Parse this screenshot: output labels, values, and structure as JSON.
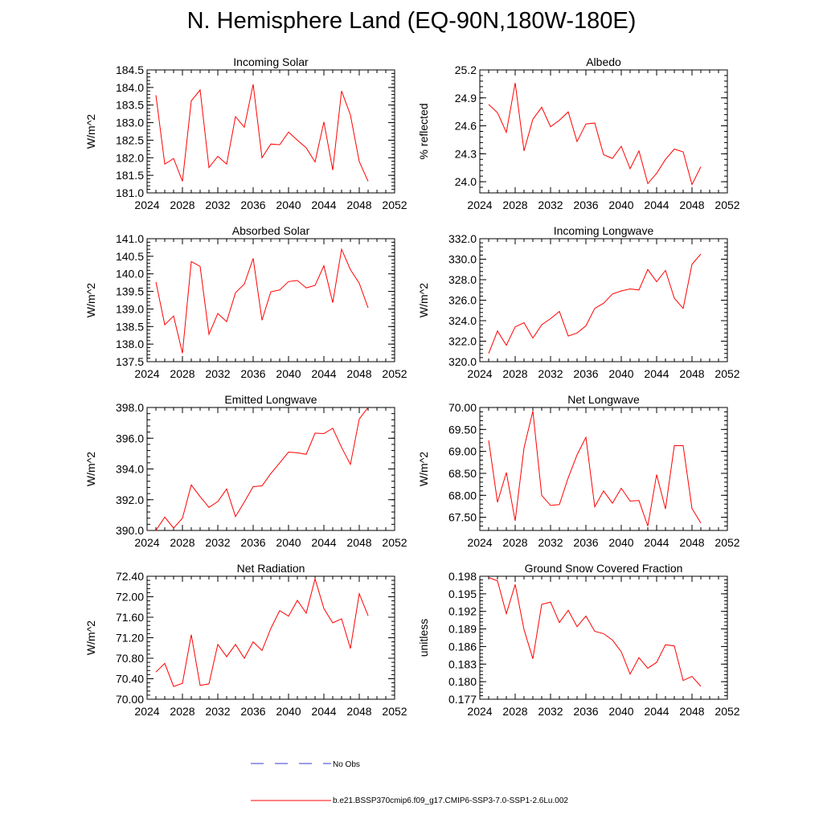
{
  "title": "N. Hemisphere Land (EQ-90N,180W-180E)",
  "legend": [
    {
      "label": "No Obs",
      "color": "#3a3ad0",
      "style": "dashed"
    },
    {
      "label": "b.e21.BSSP370cmip6.f09_g17.CMIP6-SSP3-7.0-SSP1-2.6Lu.002",
      "color": "#ff0000",
      "style": "solid"
    }
  ],
  "chart_data": [
    {
      "type": "line",
      "title": "Incoming Solar",
      "ylabel": "W/m^2",
      "xlim": [
        2024,
        2052
      ],
      "xticks": [
        "2024",
        "2028",
        "2032",
        "2036",
        "2040",
        "2044",
        "2048",
        "2052"
      ],
      "ylim": [
        181.0,
        184.5
      ],
      "yticks": [
        "181.0",
        "181.5",
        "182.0",
        "182.5",
        "183.0",
        "183.5",
        "184.0",
        "184.5"
      ],
      "series": [
        {
          "color": "#ff0000",
          "x": [
            2025,
            2026,
            2027,
            2028,
            2029,
            2030,
            2031,
            2032,
            2033,
            2034,
            2035,
            2036,
            2037,
            2038,
            2039,
            2040,
            2041,
            2042,
            2043,
            2044,
            2045,
            2046,
            2047,
            2048,
            2049
          ],
          "y": [
            183.78,
            181.82,
            181.98,
            181.33,
            183.62,
            183.93,
            181.72,
            182.04,
            181.82,
            183.17,
            182.87,
            184.09,
            182.0,
            182.39,
            182.37,
            182.73,
            182.5,
            182.28,
            181.88,
            183.02,
            181.65,
            183.9,
            183.22,
            181.89,
            181.33
          ]
        }
      ]
    },
    {
      "type": "line",
      "title": "Albedo",
      "ylabel": "% reflected",
      "xlim": [
        2024,
        2052
      ],
      "xticks": [
        "2024",
        "2028",
        "2032",
        "2036",
        "2040",
        "2044",
        "2048",
        "2052"
      ],
      "ylim": [
        23.88,
        25.2
      ],
      "yticks": [
        "24.0",
        "24.3",
        "24.6",
        "24.9",
        "25.2"
      ],
      "series": [
        {
          "color": "#ff0000",
          "x": [
            2025,
            2026,
            2027,
            2028,
            2029,
            2030,
            2031,
            2032,
            2033,
            2034,
            2035,
            2036,
            2037,
            2038,
            2039,
            2040,
            2041,
            2042,
            2043,
            2044,
            2045,
            2046,
            2047,
            2048,
            2049
          ],
          "y": [
            24.83,
            24.74,
            24.53,
            25.06,
            24.33,
            24.67,
            24.8,
            24.59,
            24.66,
            24.75,
            24.43,
            24.62,
            24.63,
            24.29,
            24.25,
            24.38,
            24.14,
            24.33,
            23.98,
            24.09,
            24.24,
            24.35,
            24.32,
            23.97,
            24.16
          ]
        }
      ]
    },
    {
      "type": "line",
      "title": "Absorbed Solar",
      "ylabel": "W/m^2",
      "xlim": [
        2024,
        2052
      ],
      "xticks": [
        "2024",
        "2028",
        "2032",
        "2036",
        "2040",
        "2044",
        "2048",
        "2052"
      ],
      "ylim": [
        137.5,
        141.0
      ],
      "yticks": [
        "137.5",
        "138.0",
        "138.5",
        "139.0",
        "139.5",
        "140.0",
        "140.5",
        "141.0"
      ],
      "series": [
        {
          "color": "#ff0000",
          "x": [
            2025,
            2026,
            2027,
            2028,
            2029,
            2030,
            2031,
            2032,
            2033,
            2034,
            2035,
            2036,
            2037,
            2038,
            2039,
            2040,
            2041,
            2042,
            2043,
            2044,
            2045,
            2046,
            2047,
            2048,
            2049
          ],
          "y": [
            139.77,
            138.55,
            138.8,
            137.74,
            140.35,
            140.21,
            138.28,
            138.87,
            138.64,
            139.46,
            139.71,
            140.44,
            138.68,
            139.49,
            139.54,
            139.78,
            139.81,
            139.6,
            139.67,
            140.23,
            139.18,
            140.7,
            140.12,
            139.73,
            139.03
          ]
        }
      ]
    },
    {
      "type": "line",
      "title": "Incoming Longwave",
      "ylabel": "W/m^2",
      "xlim": [
        2024,
        2052
      ],
      "xticks": [
        "2024",
        "2028",
        "2032",
        "2036",
        "2040",
        "2044",
        "2048",
        "2052"
      ],
      "ylim": [
        320.0,
        332.0
      ],
      "yticks": [
        "320.0",
        "322.0",
        "324.0",
        "326.0",
        "328.0",
        "330.0",
        "332.0"
      ],
      "series": [
        {
          "color": "#ff0000",
          "x": [
            2025,
            2026,
            2027,
            2028,
            2029,
            2030,
            2031,
            2032,
            2033,
            2034,
            2035,
            2036,
            2037,
            2038,
            2039,
            2040,
            2041,
            2042,
            2043,
            2044,
            2045,
            2046,
            2047,
            2048,
            2049
          ],
          "y": [
            320.8,
            323.0,
            321.6,
            323.4,
            323.8,
            322.3,
            323.6,
            324.2,
            324.9,
            322.5,
            322.8,
            323.5,
            325.2,
            325.7,
            326.6,
            326.9,
            327.1,
            327.0,
            329.0,
            327.8,
            328.9,
            326.2,
            325.2,
            329.5,
            330.5
          ]
        }
      ]
    },
    {
      "type": "line",
      "title": "Emitted Longwave",
      "ylabel": "W/m^2",
      "xlim": [
        2024,
        2052
      ],
      "xticks": [
        "2024",
        "2028",
        "2032",
        "2036",
        "2040",
        "2044",
        "2048",
        "2052"
      ],
      "ylim": [
        390.0,
        398.0
      ],
      "yticks": [
        "390.0",
        "392.0",
        "394.0",
        "396.0",
        "398.0"
      ],
      "series": [
        {
          "color": "#ff0000",
          "x": [
            2025,
            2026,
            2027,
            2028,
            2029,
            2030,
            2031,
            2032,
            2033,
            2034,
            2035,
            2036,
            2037,
            2038,
            2039,
            2040,
            2041,
            2042,
            2043,
            2044,
            2045,
            2046,
            2047,
            2048,
            2049
          ],
          "y": [
            390.0,
            390.87,
            390.15,
            390.8,
            392.96,
            392.2,
            391.5,
            391.88,
            392.7,
            390.9,
            391.85,
            392.85,
            392.9,
            393.7,
            394.4,
            395.1,
            395.05,
            394.95,
            396.33,
            396.3,
            396.65,
            395.4,
            394.3,
            397.25,
            398.0
          ]
        }
      ]
    },
    {
      "type": "line",
      "title": "Net Longwave",
      "ylabel": "W/m^2",
      "xlim": [
        2024,
        2052
      ],
      "xticks": [
        "2024",
        "2028",
        "2032",
        "2036",
        "2040",
        "2044",
        "2048",
        "2052"
      ],
      "ylim": [
        67.2,
        70.0
      ],
      "yticks": [
        "67.50",
        "68.00",
        "68.50",
        "69.00",
        "69.50",
        "70.00"
      ],
      "series": [
        {
          "color": "#ff0000",
          "x": [
            2025,
            2026,
            2027,
            2028,
            2029,
            2030,
            2031,
            2032,
            2033,
            2034,
            2035,
            2036,
            2037,
            2038,
            2039,
            2040,
            2041,
            2042,
            2043,
            2044,
            2045,
            2046,
            2047,
            2048,
            2049
          ],
          "y": [
            69.25,
            67.84,
            68.52,
            67.42,
            69.08,
            69.92,
            68.0,
            67.77,
            67.79,
            68.4,
            68.92,
            69.32,
            67.74,
            68.1,
            67.82,
            68.16,
            67.87,
            67.88,
            67.3,
            68.47,
            67.69,
            69.13,
            69.13,
            67.7,
            67.37
          ]
        }
      ]
    },
    {
      "type": "line",
      "title": "Net Radiation",
      "ylabel": "W/m^2",
      "xlim": [
        2024,
        2052
      ],
      "xticks": [
        "2024",
        "2028",
        "2032",
        "2036",
        "2040",
        "2044",
        "2048",
        "2052"
      ],
      "ylim": [
        70.0,
        72.4
      ],
      "yticks": [
        "70.00",
        "70.40",
        "70.80",
        "71.20",
        "71.60",
        "72.00",
        "72.40"
      ],
      "series": [
        {
          "color": "#ff0000",
          "x": [
            2025,
            2026,
            2027,
            2028,
            2029,
            2030,
            2031,
            2032,
            2033,
            2034,
            2035,
            2036,
            2037,
            2038,
            2039,
            2040,
            2041,
            2042,
            2043,
            2044,
            2045,
            2046,
            2047,
            2048,
            2049
          ],
          "y": [
            70.53,
            70.7,
            70.25,
            70.31,
            71.26,
            70.27,
            70.3,
            71.07,
            70.83,
            71.07,
            70.8,
            71.12,
            70.95,
            71.38,
            71.73,
            71.62,
            71.93,
            71.68,
            72.35,
            71.77,
            71.49,
            71.57,
            70.99,
            72.06,
            71.63
          ]
        }
      ]
    },
    {
      "type": "line",
      "title": "Ground Snow Covered Fraction",
      "ylabel": "unitless",
      "xlim": [
        2024,
        2052
      ],
      "xticks": [
        "2024",
        "2028",
        "2032",
        "2036",
        "2040",
        "2044",
        "2048",
        "2052"
      ],
      "ylim": [
        0.177,
        0.198
      ],
      "yticks": [
        "0.177",
        "0.180",
        "0.183",
        "0.186",
        "0.189",
        "0.192",
        "0.195",
        "0.198"
      ],
      "series": [
        {
          "color": "#ff0000",
          "x": [
            2025,
            2026,
            2027,
            2028,
            2029,
            2030,
            2031,
            2032,
            2033,
            2034,
            2035,
            2036,
            2037,
            2038,
            2039,
            2040,
            2041,
            2042,
            2043,
            2044,
            2045,
            2046,
            2047,
            2048,
            2049
          ],
          "y": [
            0.1978,
            0.1972,
            0.1916,
            0.1966,
            0.1889,
            0.1839,
            0.1932,
            0.1936,
            0.1901,
            0.1922,
            0.1894,
            0.1912,
            0.1886,
            0.1882,
            0.1871,
            0.1851,
            0.1813,
            0.1841,
            0.1823,
            0.1833,
            0.1863,
            0.1861,
            0.1802,
            0.1809,
            0.1792
          ]
        }
      ]
    }
  ]
}
